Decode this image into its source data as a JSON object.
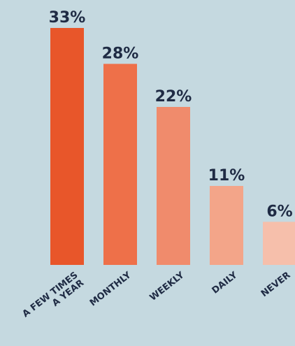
{
  "chart_data": {
    "type": "bar",
    "categories": [
      "A FEW TIMES\nA YEAR",
      "MONTHLY",
      "WEEKLY",
      "DAILY",
      "NEVER"
    ],
    "values": [
      33,
      28,
      22,
      11,
      6
    ],
    "value_labels": [
      "33%",
      "28%",
      "22%",
      "11%",
      "6%"
    ],
    "title": "",
    "xlabel": "",
    "ylabel": "",
    "ylim": [
      0,
      33
    ],
    "grid": false,
    "legend": "none",
    "bar_colors": [
      "#e8562a",
      "#ee7049",
      "#f08b6c",
      "#f3a589",
      "#f6bfab"
    ]
  },
  "colors": {
    "background": "#c5d9e0",
    "text": "#1f2b44"
  }
}
